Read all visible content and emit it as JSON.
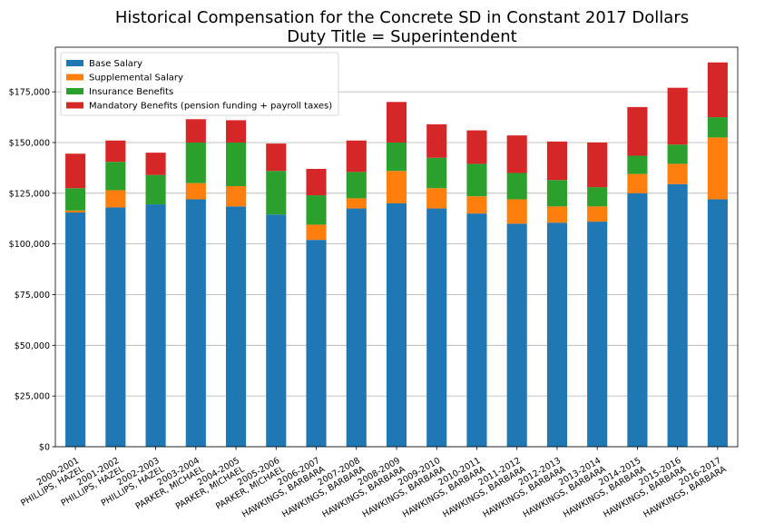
{
  "chart_data": {
    "type": "bar",
    "stacked": true,
    "title": "Historical Compensation for the Concrete SD in Constant 2017 Dollars",
    "subtitle": "Duty Title = Superintendent",
    "ylim": [
      0,
      197000
    ],
    "yticks": [
      0,
      25000,
      50000,
      75000,
      100000,
      125000,
      150000,
      175000
    ],
    "ytick_labels": [
      "$0",
      "$25,000",
      "$50,000",
      "$75,000",
      "$100,000",
      "$125,000",
      "$150,000",
      "$175,000"
    ],
    "grid": "horizontal",
    "legend_position": "top-left",
    "categories": [
      [
        "2000-2001",
        "PHILLIPS, HAZEL"
      ],
      [
        "2001-2002",
        "PHILLIPS, HAZEL"
      ],
      [
        "2002-2003",
        "PHILLIPS, HAZEL"
      ],
      [
        "2003-2004",
        "PARKER, MICHAEL"
      ],
      [
        "2004-2005",
        "PARKER, MICHAEL"
      ],
      [
        "2005-2006",
        "PARKER, MICHAEL"
      ],
      [
        "2006-2007",
        "HAWKINGS, BARBARA"
      ],
      [
        "2007-2008",
        "HAWKINGS, BARBARA"
      ],
      [
        "2008-2009",
        "HAWKINGS, BARBARA"
      ],
      [
        "2009-2010",
        "HAWKINGS, BARBARA"
      ],
      [
        "2010-2011",
        "HAWKINGS, BARBARA"
      ],
      [
        "2011-2012",
        "HAWKINGS, BARBARA"
      ],
      [
        "2012-2013",
        "HAWKINGS, BARBARA"
      ],
      [
        "2013-2014",
        "HAWKINGS, BARBARA"
      ],
      [
        "2014-2015",
        "HAWKINGS, BARBARA"
      ],
      [
        "2015-2016",
        "HAWKINGS, BARBARA"
      ],
      [
        "2016-2017",
        "HAWKINGS, BARBARA"
      ]
    ],
    "series": [
      {
        "name": "Base Salary",
        "color": "#1f77b4",
        "values": [
          115500,
          118000,
          119500,
          122000,
          118500,
          114500,
          102000,
          117500,
          120000,
          117500,
          115000,
          110000,
          110500,
          111000,
          125000,
          129500,
          122000
        ]
      },
      {
        "name": "Supplemental Salary",
        "color": "#ff7f0e",
        "values": [
          1000,
          8500,
          0,
          8000,
          10000,
          0,
          7500,
          5000,
          16000,
          10000,
          8500,
          12000,
          8000,
          7500,
          9500,
          10000,
          30500
        ]
      },
      {
        "name": "Insurance Benefits",
        "color": "#2ca02c",
        "values": [
          11000,
          14000,
          14500,
          20000,
          21500,
          21500,
          14500,
          13000,
          14000,
          15000,
          16000,
          13000,
          13000,
          9500,
          9000,
          9500,
          10000
        ]
      },
      {
        "name": "Mandatory Benefits (pension funding + payroll taxes)",
        "color": "#d62728",
        "values": [
          17000,
          10500,
          11000,
          11500,
          11000,
          13500,
          13000,
          15500,
          20000,
          16500,
          16500,
          18500,
          19000,
          22000,
          24000,
          28000,
          27000
        ]
      }
    ]
  }
}
